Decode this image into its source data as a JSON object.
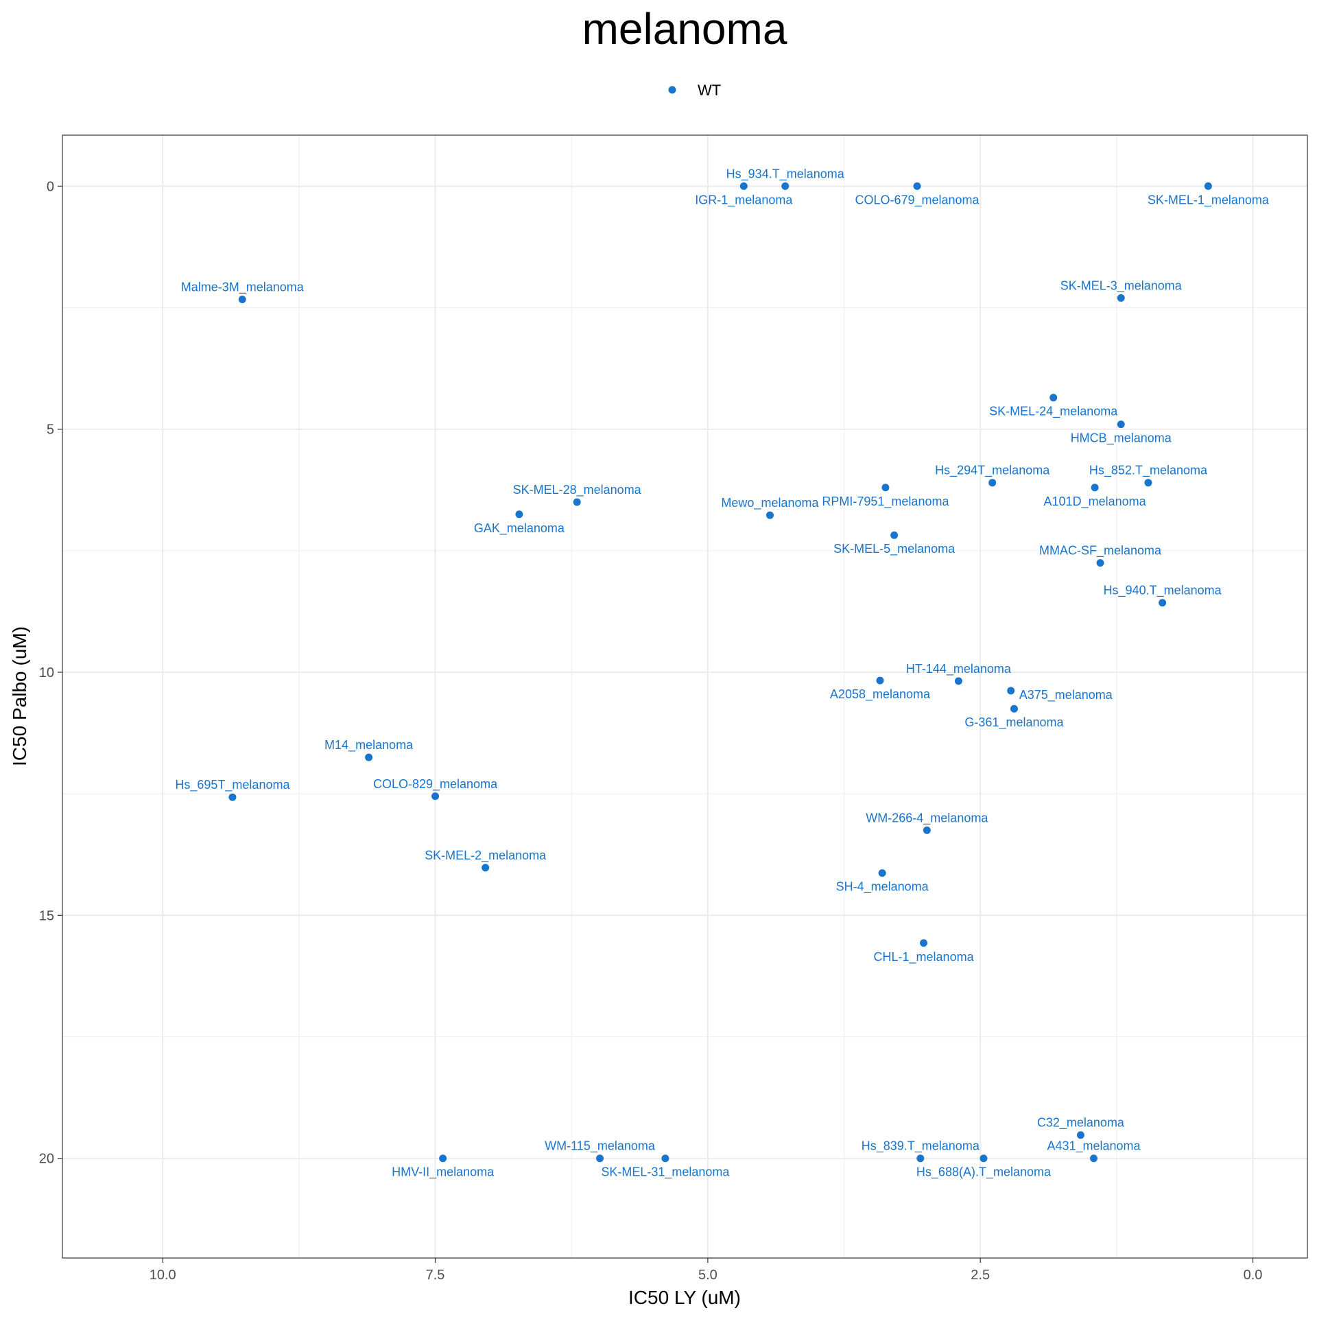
{
  "chart_data": {
    "type": "scatter",
    "title": "melanoma",
    "xlabel": "IC50 LY (uM)",
    "ylabel": "IC50 Palbo (uM)",
    "x_reversed": true,
    "y_reversed": true,
    "xlim": [
      10.92,
      -0.5
    ],
    "ylim": [
      -1.05,
      22.05
    ],
    "x_ticks": [
      10.0,
      7.5,
      5.0,
      2.5,
      0.0
    ],
    "x_tick_labels": [
      "10.0",
      "7.5",
      "5.0",
      "2.5",
      "0.0"
    ],
    "y_ticks": [
      0,
      5,
      10,
      15,
      20
    ],
    "y_tick_labels": [
      "0",
      "5",
      "10",
      "15",
      "20"
    ],
    "grid": true,
    "legend_position": "top",
    "series": [
      {
        "name": "WT",
        "color": "#1874CD",
        "points": [
          {
            "label": "Hs_934.T_melanoma",
            "x": 4.29,
            "y": 0.0,
            "label_pos": "above"
          },
          {
            "label": "IGR-1_melanoma",
            "x": 4.67,
            "y": 0.0,
            "label_pos": "below"
          },
          {
            "label": "COLO-679_melanoma",
            "x": 3.08,
            "y": 0.0,
            "label_pos": "below"
          },
          {
            "label": "SK-MEL-1_melanoma",
            "x": 0.41,
            "y": 0.0,
            "label_pos": "below"
          },
          {
            "label": "Malme-3M_melanoma",
            "x": 9.27,
            "y": 2.33,
            "label_pos": "above"
          },
          {
            "label": "SK-MEL-3_melanoma",
            "x": 1.21,
            "y": 2.3,
            "label_pos": "above"
          },
          {
            "label": "SK-MEL-24_melanoma",
            "x": 1.83,
            "y": 4.35,
            "label_pos": "below"
          },
          {
            "label": "HMCB_melanoma",
            "x": 1.21,
            "y": 4.9,
            "label_pos": "below"
          },
          {
            "label": "Hs_294T_melanoma",
            "x": 2.39,
            "y": 6.1,
            "label_pos": "above"
          },
          {
            "label": "Hs_852.T_melanoma",
            "x": 0.96,
            "y": 6.1,
            "label_pos": "above"
          },
          {
            "label": "RPMI-7951_melanoma",
            "x": 3.37,
            "y": 6.2,
            "label_pos": "below"
          },
          {
            "label": "A101D_melanoma",
            "x": 1.45,
            "y": 6.2,
            "label_pos": "below"
          },
          {
            "label": "SK-MEL-28_melanoma",
            "x": 6.2,
            "y": 6.5,
            "label_pos": "above"
          },
          {
            "label": "GAK_melanoma",
            "x": 6.73,
            "y": 6.75,
            "label_pos": "below"
          },
          {
            "label": "Mewo_melanoma",
            "x": 4.43,
            "y": 6.77,
            "label_pos": "above"
          },
          {
            "label": "SK-MEL-5_melanoma",
            "x": 3.29,
            "y": 7.18,
            "label_pos": "below"
          },
          {
            "label": "MMAC-SF_melanoma",
            "x": 1.4,
            "y": 7.75,
            "label_pos": "above"
          },
          {
            "label": "Hs_940.T_melanoma",
            "x": 0.83,
            "y": 8.57,
            "label_pos": "above"
          },
          {
            "label": "A2058_melanoma",
            "x": 3.42,
            "y": 10.17,
            "label_pos": "below"
          },
          {
            "label": "HT-144_melanoma",
            "x": 2.7,
            "y": 10.18,
            "label_pos": "above"
          },
          {
            "label": "A375_melanoma",
            "x": 2.22,
            "y": 10.38,
            "label_pos": "right"
          },
          {
            "label": "G-361_melanoma",
            "x": 2.19,
            "y": 10.75,
            "label_pos": "below"
          },
          {
            "label": "M14_melanoma",
            "x": 8.11,
            "y": 11.75,
            "label_pos": "above"
          },
          {
            "label": "Hs_695T_melanoma",
            "x": 9.36,
            "y": 12.57,
            "label_pos": "above"
          },
          {
            "label": "COLO-829_melanoma",
            "x": 7.5,
            "y": 12.55,
            "label_pos": "above"
          },
          {
            "label": "WM-266-4_melanoma",
            "x": 2.99,
            "y": 13.25,
            "label_pos": "above"
          },
          {
            "label": "SK-MEL-2_melanoma",
            "x": 7.04,
            "y": 14.02,
            "label_pos": "above"
          },
          {
            "label": "SH-4_melanoma",
            "x": 3.4,
            "y": 14.13,
            "label_pos": "below"
          },
          {
            "label": "CHL-1_melanoma",
            "x": 3.02,
            "y": 15.57,
            "label_pos": "below"
          },
          {
            "label": "C32_melanoma",
            "x": 1.58,
            "y": 19.52,
            "label_pos": "above"
          },
          {
            "label": "A431_melanoma",
            "x": 1.46,
            "y": 20.0,
            "label_pos": "above"
          },
          {
            "label": "HMV-II_melanoma",
            "x": 7.43,
            "y": 20.0,
            "label_pos": "below"
          },
          {
            "label": "WM-115_melanoma",
            "x": 5.99,
            "y": 20.0,
            "label_pos": "above"
          },
          {
            "label": "SK-MEL-31_melanoma",
            "x": 5.39,
            "y": 20.0,
            "label_pos": "below"
          },
          {
            "label": "Hs_839.T_melanoma",
            "x": 3.05,
            "y": 20.0,
            "label_pos": "above"
          },
          {
            "label": "Hs_688(A).T_melanoma",
            "x": 2.47,
            "y": 20.0,
            "label_pos": "below"
          }
        ]
      }
    ]
  }
}
